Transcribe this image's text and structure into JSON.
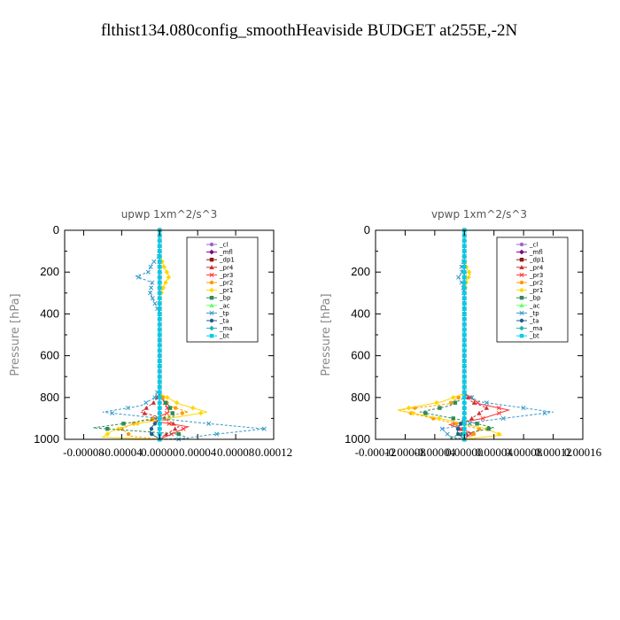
{
  "title": "flthist134.080config_smoothHeaviside  BUDGET at255E,-2N",
  "legend_entries": [
    "_cl",
    "_mfl",
    "_dp1",
    "_pr4",
    "_pr3",
    "_pr2",
    "_pr1",
    "_bp",
    "_ac",
    "_tp",
    "_ta",
    "_ma",
    "_bt"
  ],
  "legend_colors": [
    "#9966cc",
    "#800080",
    "#8b1a1a",
    "#cc3333",
    "#ff3333",
    "#ff9900",
    "#ffd700",
    "#2e8b57",
    "#66ff66",
    "#3399cc",
    "#1f5f8b",
    "#20b2aa",
    "#00ccee"
  ],
  "chart_data": [
    {
      "type": "line",
      "title": "upwp   1xm^2/s^3",
      "ylabel": "Pressure [hPa]",
      "xlabel": "",
      "ylim": [
        1000,
        0
      ],
      "xlim": [
        -0.0001,
        0.00012
      ],
      "yticks": [
        0,
        200,
        400,
        600,
        800,
        1000
      ],
      "xtick_labels": [
        "-0.00008",
        "-0.00004",
        "0.00000",
        "0.00004",
        "0.00008",
        "0.00012"
      ],
      "xtick_values": [
        -8e-05,
        -4e-05,
        0,
        4e-05,
        8e-05,
        0.00012
      ],
      "series": [
        {
          "name": "_cl",
          "color": "#9966cc",
          "points": [
            [
              0,
              0
            ],
            [
              0,
              1000
            ]
          ]
        },
        {
          "name": "_mfl",
          "color": "#800080",
          "points": [
            [
              0,
              0
            ],
            [
              0,
              1000
            ]
          ]
        },
        {
          "name": "_dp1",
          "color": "#8b1a1a",
          "points": [
            [
              0,
              0
            ],
            [
              0,
              1000
            ]
          ]
        },
        {
          "name": "_pr4",
          "color": "#cc3333",
          "points": [
            [
              0,
              0
            ],
            [
              0,
              780
            ],
            [
              -5e-06,
              820
            ],
            [
              -2e-05,
              870
            ],
            [
              5e-06,
              900
            ],
            [
              2e-05,
              940
            ],
            [
              5e-06,
              980
            ],
            [
              0,
              1000
            ]
          ]
        },
        {
          "name": "_pr3",
          "color": "#ff3333",
          "points": [
            [
              0,
              0
            ],
            [
              0,
              780
            ],
            [
              5e-06,
              820
            ],
            [
              1e-05,
              870
            ],
            [
              -1e-05,
              910
            ],
            [
              3e-05,
              940
            ],
            [
              1e-05,
              980
            ],
            [
              0,
              1000
            ]
          ]
        },
        {
          "name": "_pr2",
          "color": "#ff9900",
          "points": [
            [
              0,
              0
            ],
            [
              0,
              780
            ],
            [
              1e-05,
              840
            ],
            [
              3e-05,
              870
            ],
            [
              -2e-05,
              910
            ],
            [
              -4e-05,
              950
            ],
            [
              -3e-05,
              985
            ],
            [
              0,
              1000
            ]
          ]
        },
        {
          "name": "_pr1",
          "color": "#ffd700",
          "points": [
            [
              0,
              0
            ],
            [
              0,
              120
            ],
            [
              5e-06,
              180
            ],
            [
              1e-05,
              220
            ],
            [
              5e-06,
              260
            ],
            [
              0,
              320
            ],
            [
              0,
              780
            ],
            [
              2e-05,
              830
            ],
            [
              5e-05,
              870
            ],
            [
              -3e-05,
              930
            ],
            [
              -5e-05,
              960
            ],
            [
              -6e-05,
              990
            ],
            [
              0,
              1000
            ]
          ]
        },
        {
          "name": "_bp",
          "color": "#2e8b57",
          "points": [
            [
              0,
              0
            ],
            [
              0,
              800
            ],
            [
              1e-05,
              840
            ],
            [
              1.5e-05,
              890
            ],
            [
              -3e-05,
              920
            ],
            [
              -7e-05,
              945
            ],
            [
              2e-05,
              975
            ],
            [
              3e-05,
              995
            ],
            [
              0,
              1000
            ]
          ]
        },
        {
          "name": "_ac",
          "color": "#66ff66",
          "points": [
            [
              0,
              0
            ],
            [
              0,
              1000
            ]
          ]
        },
        {
          "name": "_tp",
          "color": "#3399cc",
          "points": [
            [
              0,
              0
            ],
            [
              0,
              120
            ],
            [
              -8e-06,
              160
            ],
            [
              -1.2e-05,
              200
            ],
            [
              -2.5e-05,
              220
            ],
            [
              -8e-06,
              250
            ],
            [
              -1e-05,
              300
            ],
            [
              -5e-06,
              350
            ],
            [
              0,
              400
            ],
            [
              0,
              750
            ],
            [
              -5e-06,
              800
            ],
            [
              -2e-05,
              840
            ],
            [
              -6e-05,
              870
            ],
            [
              4e-05,
              920
            ],
            [
              0.00011,
              950
            ],
            [
              5e-05,
              980
            ],
            [
              2e-05,
              1000
            ]
          ]
        },
        {
          "name": "_ta",
          "color": "#1f5f8b",
          "points": [
            [
              0,
              0
            ],
            [
              0,
              900
            ],
            [
              -8e-06,
              940
            ],
            [
              -1e-05,
              970
            ],
            [
              0,
              1000
            ]
          ]
        },
        {
          "name": "_ma",
          "color": "#20b2aa",
          "points": [
            [
              0,
              0
            ],
            [
              0,
              1000
            ]
          ]
        },
        {
          "name": "_bt",
          "color": "#00ccee",
          "points": [
            [
              0,
              0
            ],
            [
              0,
              1000
            ]
          ]
        }
      ]
    },
    {
      "type": "line",
      "title": "vpwp   1xm^2/s^3",
      "ylabel": "Pressure [hPa]",
      "xlabel": "",
      "ylim": [
        1000,
        0
      ],
      "xlim": [
        -0.00012,
        0.00016
      ],
      "yticks": [
        0,
        200,
        400,
        600,
        800,
        1000
      ],
      "xtick_labels": [
        "-0.00012",
        "-0.00008",
        "-0.00004",
        "0.00000",
        "0.00004",
        "0.00008",
        "0.00012",
        "0.00016"
      ],
      "xtick_values": [
        -0.00012,
        -8e-05,
        -4e-05,
        0,
        4e-05,
        8e-05,
        0.00012,
        0.00016
      ],
      "series": [
        {
          "name": "_cl",
          "color": "#9966cc",
          "points": [
            [
              0,
              0
            ],
            [
              0,
              1000
            ]
          ]
        },
        {
          "name": "_mfl",
          "color": "#800080",
          "points": [
            [
              0,
              0
            ],
            [
              0,
              1000
            ]
          ]
        },
        {
          "name": "_dp1",
          "color": "#8b1a1a",
          "points": [
            [
              0,
              0
            ],
            [
              0,
              1000
            ]
          ]
        },
        {
          "name": "_pr4",
          "color": "#cc3333",
          "points": [
            [
              0,
              0
            ],
            [
              0,
              780
            ],
            [
              1e-05,
              820
            ],
            [
              3e-05,
              850
            ],
            [
              1e-05,
              900
            ],
            [
              -1e-05,
              940
            ],
            [
              5e-06,
              980
            ],
            [
              0,
              1000
            ]
          ]
        },
        {
          "name": "_pr3",
          "color": "#ff3333",
          "points": [
            [
              0,
              0
            ],
            [
              0,
              780
            ],
            [
              2e-05,
              830
            ],
            [
              6e-05,
              860
            ],
            [
              2.5e-05,
              900
            ],
            [
              -2e-05,
              930
            ],
            [
              1e-05,
              970
            ],
            [
              0,
              1000
            ]
          ]
        },
        {
          "name": "_pr2",
          "color": "#ff9900",
          "points": [
            [
              0,
              0
            ],
            [
              0,
              780
            ],
            [
              -2e-05,
              830
            ],
            [
              -9e-05,
              860
            ],
            [
              -3e-05,
              910
            ],
            [
              2e-05,
              950
            ],
            [
              1e-05,
              985
            ],
            [
              0,
              1000
            ]
          ]
        },
        {
          "name": "_pr1",
          "color": "#ffd700",
          "points": [
            [
              0,
              0
            ],
            [
              0,
              140
            ],
            [
              3e-06,
              180
            ],
            [
              8e-06,
              210
            ],
            [
              3e-06,
              240
            ],
            [
              0,
              300
            ],
            [
              0,
              780
            ],
            [
              -3e-05,
              820
            ],
            [
              -9e-05,
              860
            ],
            [
              -2e-05,
              910
            ],
            [
              3e-05,
              950
            ],
            [
              5e-05,
              980
            ],
            [
              0,
              1000
            ]
          ]
        },
        {
          "name": "_bp",
          "color": "#2e8b57",
          "points": [
            [
              0,
              0
            ],
            [
              0,
              800
            ],
            [
              -2e-05,
              840
            ],
            [
              -6e-05,
              870
            ],
            [
              0,
              910
            ],
            [
              4e-05,
              945
            ],
            [
              -1e-05,
              980
            ],
            [
              -2e-05,
              995
            ],
            [
              0,
              1000
            ]
          ]
        },
        {
          "name": "_ac",
          "color": "#66ff66",
          "points": [
            [
              0,
              0
            ],
            [
              0,
              1000
            ]
          ]
        },
        {
          "name": "_tp",
          "color": "#3399cc",
          "points": [
            [
              0,
              0
            ],
            [
              0,
              140
            ],
            [
              -4e-06,
              170
            ],
            [
              -3e-06,
              200
            ],
            [
              -8e-06,
              225
            ],
            [
              -2e-06,
              260
            ],
            [
              0,
              320
            ],
            [
              0,
              780
            ],
            [
              2e-05,
              820
            ],
            [
              6e-05,
              840
            ],
            [
              0.00012,
              870
            ],
            [
              3e-05,
              910
            ],
            [
              -3e-05,
              950
            ],
            [
              -2e-05,
              985
            ],
            [
              0,
              1000
            ]
          ]
        },
        {
          "name": "_ta",
          "color": "#1f5f8b",
          "points": [
            [
              0,
              0
            ],
            [
              0,
              900
            ],
            [
              -8e-06,
              940
            ],
            [
              -1e-05,
              970
            ],
            [
              0,
              1000
            ]
          ]
        },
        {
          "name": "_ma",
          "color": "#20b2aa",
          "points": [
            [
              0,
              0
            ],
            [
              0,
              1000
            ]
          ]
        },
        {
          "name": "_bt",
          "color": "#00ccee",
          "points": [
            [
              0,
              0
            ],
            [
              0,
              1000
            ]
          ]
        }
      ]
    }
  ]
}
